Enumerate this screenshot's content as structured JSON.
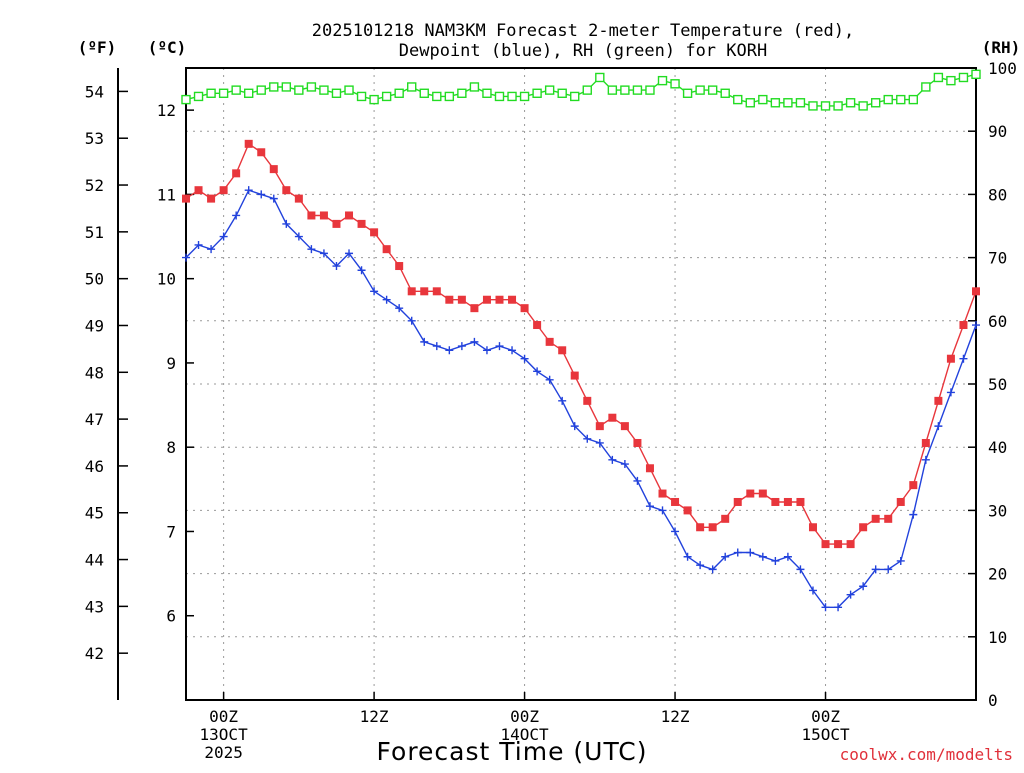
{
  "chart_data": {
    "type": "line",
    "title_line1": "2025101218 NAM3KM Forecast 2-meter Temperature (red),",
    "title_line2": "Dewpoint (blue), RH (green) for KORH",
    "xlabel": "Forecast Time (UTC)",
    "credit": "coolwx.com/modelts",
    "left_units": {
      "f": "(ºF)",
      "c": "(ºC)"
    },
    "right_unit": "(RH)",
    "x_hours": [
      -3,
      -2,
      -1,
      0,
      1,
      2,
      3,
      4,
      5,
      6,
      7,
      8,
      9,
      10,
      11,
      12,
      13,
      14,
      15,
      16,
      17,
      18,
      19,
      20,
      21,
      22,
      23,
      24,
      25,
      26,
      27,
      28,
      29,
      30,
      31,
      32,
      33,
      34,
      35,
      36,
      37,
      38,
      39,
      40,
      41,
      42,
      43,
      44,
      45,
      46,
      47,
      48,
      49,
      50,
      51,
      52,
      53,
      54,
      55,
      56,
      57,
      58,
      59,
      60
    ],
    "xlim": [
      -3,
      60
    ],
    "ylim_c": [
      5,
      12.5
    ],
    "ylim_rh": [
      0,
      100
    ],
    "yticks_c": [
      6,
      7,
      8,
      9,
      10,
      11,
      12
    ],
    "yticks_f": [
      42,
      43,
      44,
      45,
      46,
      47,
      48,
      49,
      50,
      51,
      52,
      53,
      54
    ],
    "yticks_rh": [
      0,
      10,
      20,
      30,
      40,
      50,
      60,
      70,
      80,
      90,
      100
    ],
    "xticks": [
      {
        "hour": 0,
        "lines": [
          "00Z",
          "13OCT",
          "2025"
        ]
      },
      {
        "hour": 12,
        "lines": [
          "12Z"
        ]
      },
      {
        "hour": 24,
        "lines": [
          "00Z",
          "14OCT"
        ]
      },
      {
        "hour": 36,
        "lines": [
          "12Z"
        ]
      },
      {
        "hour": 48,
        "lines": [
          "00Z",
          "15OCT"
        ]
      }
    ],
    "series": [
      {
        "name": "Temperature",
        "axis": "celsius",
        "color": "#e8363c",
        "marker": "filled-square",
        "values": [
          10.95,
          11.05,
          10.95,
          11.05,
          11.25,
          11.6,
          11.5,
          11.3,
          11.05,
          10.95,
          10.75,
          10.75,
          10.65,
          10.75,
          10.65,
          10.55,
          10.35,
          10.15,
          9.85,
          9.85,
          9.85,
          9.75,
          9.75,
          9.65,
          9.75,
          9.75,
          9.75,
          9.65,
          9.45,
          9.25,
          9.15,
          8.85,
          8.55,
          8.25,
          8.35,
          8.25,
          8.05,
          7.75,
          7.45,
          7.35,
          7.25,
          7.05,
          7.05,
          7.15,
          7.35,
          7.45,
          7.45,
          7.35,
          7.35,
          7.35,
          7.05,
          6.85,
          6.85,
          6.85,
          7.05,
          7.15,
          7.15,
          7.35,
          7.55,
          8.05,
          8.55,
          9.05,
          9.45,
          9.85
        ]
      },
      {
        "name": "Dewpoint",
        "axis": "celsius",
        "color": "#2242dc",
        "marker": "plus",
        "values": [
          10.25,
          10.4,
          10.35,
          10.5,
          10.75,
          11.05,
          11.0,
          10.95,
          10.65,
          10.5,
          10.35,
          10.3,
          10.15,
          10.3,
          10.1,
          9.85,
          9.75,
          9.65,
          9.5,
          9.25,
          9.2,
          9.15,
          9.2,
          9.25,
          9.15,
          9.2,
          9.15,
          9.05,
          8.9,
          8.8,
          8.55,
          8.25,
          8.1,
          8.05,
          7.85,
          7.8,
          7.6,
          7.3,
          7.25,
          7.0,
          6.7,
          6.6,
          6.55,
          6.7,
          6.75,
          6.75,
          6.7,
          6.65,
          6.7,
          6.55,
          6.3,
          6.1,
          6.1,
          6.25,
          6.35,
          6.55,
          6.55,
          6.65,
          7.2,
          7.85,
          8.25,
          8.65,
          9.05,
          9.45
        ]
      },
      {
        "name": "RH",
        "axis": "rh",
        "color": "#22dc22",
        "marker": "open-square",
        "values": [
          95,
          95.5,
          96,
          96,
          96.5,
          96,
          96.5,
          97,
          97,
          96.5,
          97,
          96.5,
          96,
          96.5,
          95.5,
          95,
          95.5,
          96,
          97,
          96,
          95.5,
          95.5,
          96,
          97,
          96,
          95.5,
          95.5,
          95.5,
          96,
          96.5,
          96,
          95.5,
          96.5,
          98.5,
          96.5,
          96.5,
          96.5,
          96.5,
          98,
          97.5,
          96,
          96.5,
          96.5,
          96,
          95,
          94.5,
          95,
          94.5,
          94.5,
          94.5,
          94,
          94,
          94,
          94.5,
          94,
          94.5,
          95,
          95,
          95,
          97,
          98.5,
          98,
          98.5,
          99
        ]
      }
    ]
  }
}
